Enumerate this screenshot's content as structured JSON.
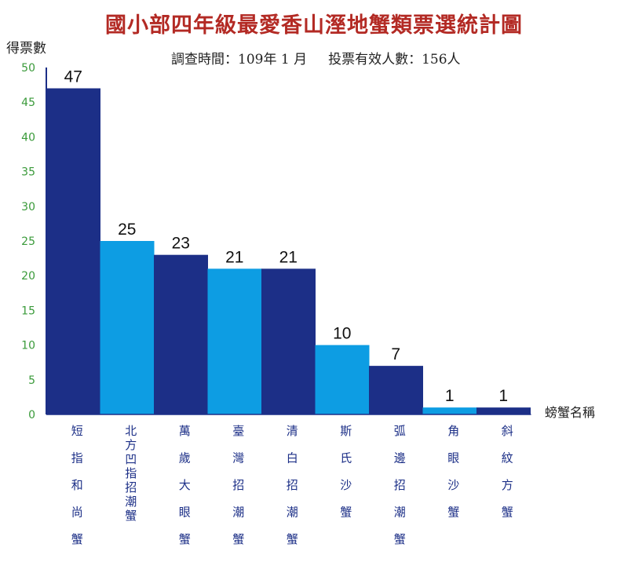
{
  "chart_data": {
    "type": "bar",
    "title": "國小部四年級最愛香山溼地蟹類票選統計圖",
    "subtitle": "調查時間：109年 1 月     投票有效人數：156人",
    "ylabel": "得票數",
    "xlabel": "螃蟹名稱",
    "ylim": [
      0,
      50
    ],
    "yticks": [
      "0",
      "5",
      "10",
      "15",
      "20",
      "25",
      "30",
      "35",
      "40",
      "45",
      "50"
    ],
    "categories": [
      [
        "短",
        "指",
        "和",
        "尚",
        "蟹"
      ],
      [
        "北",
        "方",
        "凹",
        "指",
        "招",
        "潮",
        "蟹"
      ],
      [
        "萬",
        "歲",
        "大",
        "眼",
        "蟹"
      ],
      [
        "臺",
        "灣",
        "招",
        "潮",
        "蟹"
      ],
      [
        "清",
        "白",
        "招",
        "潮",
        "蟹"
      ],
      [
        "斯",
        "氏",
        "沙",
        "蟹"
      ],
      [
        "弧",
        "邊",
        "招",
        "潮",
        "蟹"
      ],
      [
        "角",
        "眼",
        "沙",
        "蟹"
      ],
      [
        "斜",
        "紋",
        "方",
        "蟹"
      ]
    ],
    "values": [
      47,
      25,
      23,
      21,
      21,
      10,
      7,
      1,
      1
    ],
    "data_labels": [
      "47",
      "25",
      "23",
      "21",
      "21",
      "10",
      "7",
      "1",
      "1"
    ],
    "bar_colors": [
      "#1c2f87",
      "#0d9de3",
      "#1c2f87",
      "#0d9de3",
      "#1c2f87",
      "#0d9de3",
      "#1c2f87",
      "#0d9de3",
      "#1c2f87"
    ],
    "colors": {
      "title": "#b32a24",
      "ytick": "#3a9a3a",
      "category": "#1c2f87"
    },
    "grid": false,
    "legend": "none"
  }
}
